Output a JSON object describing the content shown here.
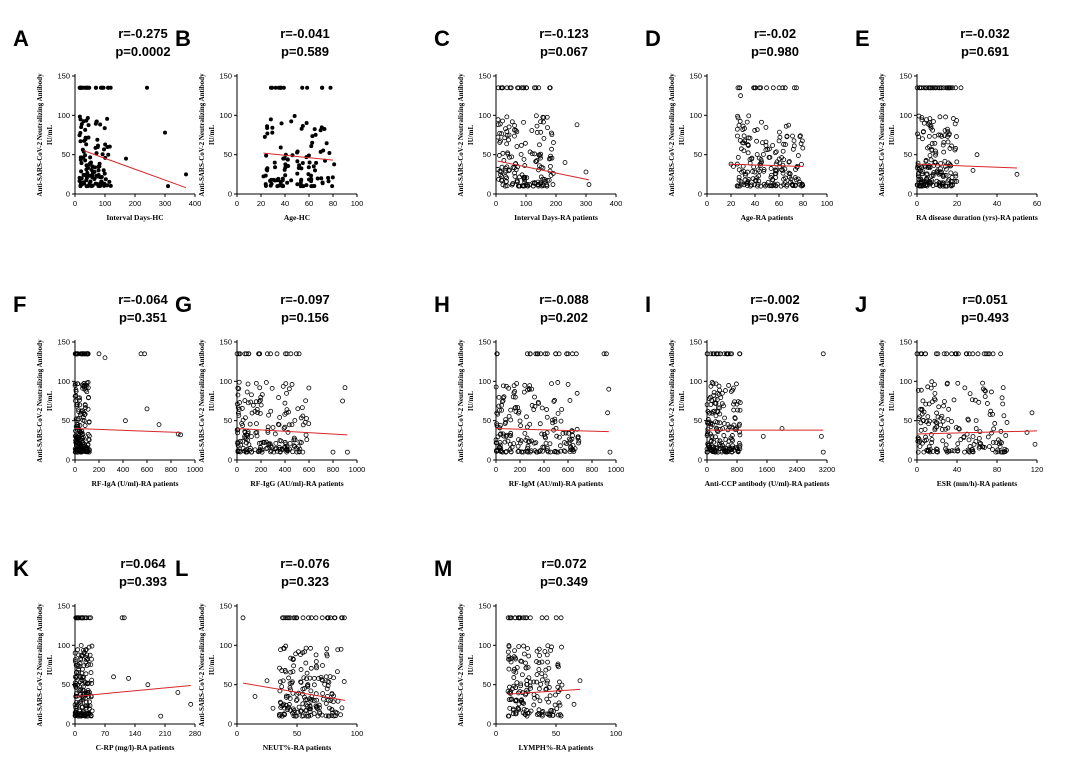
{
  "chart_data": [
    {
      "type": "scatter",
      "letter": "A",
      "r_text": "r=-0.275",
      "p_text": "p=0.0002",
      "xlabel": "Interval Days-HC",
      "ylabel_line1": "Anti-SARS-CoV-2 Neutralizing Antibody",
      "ylabel_line2": "IU/mL",
      "xlim": [
        0,
        400
      ],
      "ylim": [
        0,
        150
      ],
      "xticks": [
        0,
        100,
        200,
        300,
        400
      ],
      "yticks": [
        0,
        50,
        100,
        150
      ],
      "marker": "filled",
      "trend": [
        [
          30,
          55
        ],
        [
          370,
          8
        ]
      ],
      "cluster": {
        "x": [
          15,
          120
        ],
        "y": [
          10,
          135
        ]
      },
      "extra_points": [
        [
          240,
          135
        ],
        [
          300,
          78
        ],
        [
          310,
          10
        ],
        [
          370,
          25
        ],
        [
          170,
          45
        ]
      ],
      "n": 130,
      "seed": 11
    },
    {
      "type": "scatter",
      "letter": "B",
      "r_text": "r=-0.041",
      "p_text": "p=0.589",
      "xlabel": "Age-HC",
      "ylabel_line1": "Anti-SARS-CoV-2 Neutralizing Antibody",
      "ylabel_line2": "IU/mL",
      "xlim": [
        0,
        100
      ],
      "ylim": [
        0,
        150
      ],
      "xticks": [
        0,
        20,
        40,
        60,
        80,
        100
      ],
      "yticks": [
        0,
        50,
        100,
        150
      ],
      "marker": "filled",
      "trend": [
        [
          22,
          52
        ],
        [
          80,
          43
        ]
      ],
      "cluster": {
        "x": [
          22,
          82
        ],
        "y": [
          10,
          135
        ]
      },
      "extra_points": [],
      "n": 120,
      "seed": 23
    },
    {
      "type": "scatter",
      "letter": "C",
      "r_text": "r=-0.123",
      "p_text": "p=0.067",
      "xlabel": "Interval Days-RA patients",
      "ylabel_line1": "Anti-SARS-CoV-2 Neutralizing Antibody",
      "ylabel_line2": "IU/mL",
      "xlim": [
        0,
        400
      ],
      "ylim": [
        0,
        150
      ],
      "xticks": [
        0,
        100,
        200,
        300,
        400
      ],
      "yticks": [
        0,
        50,
        100,
        150
      ],
      "marker": "open",
      "trend": [
        [
          5,
          42
        ],
        [
          310,
          18
        ]
      ],
      "cluster": {
        "x": [
          5,
          200
        ],
        "y": [
          10,
          135
        ]
      },
      "extra_points": [
        [
          270,
          88
        ],
        [
          300,
          28
        ],
        [
          310,
          12
        ],
        [
          230,
          40
        ]
      ],
      "n": 180,
      "seed": 37
    },
    {
      "type": "scatter",
      "letter": "D",
      "r_text": "r=-0.02",
      "p_text": "p=0.980",
      "xlabel": "Age-RA patients",
      "ylabel_line1": "Anti-SARS-CoV-2 Neutralizing Antibody",
      "ylabel_line2": "IU/mL",
      "xlim": [
        0,
        100
      ],
      "ylim": [
        0,
        150
      ],
      "xticks": [
        0,
        20,
        40,
        60,
        80,
        100
      ],
      "yticks": [
        0,
        50,
        100,
        150
      ],
      "marker": "open",
      "trend": [
        [
          18,
          38
        ],
        [
          80,
          35
        ]
      ],
      "cluster": {
        "x": [
          25,
          80
        ],
        "y": [
          10,
          135
        ]
      },
      "extra_points": [
        [
          20,
          38
        ],
        [
          28,
          125
        ],
        [
          22,
          35
        ]
      ],
      "n": 200,
      "seed": 41
    },
    {
      "type": "scatter",
      "letter": "E",
      "r_text": "r=-0.032",
      "p_text": "p=0.691",
      "xlabel": "RA disease duration (yrs)-RA patients",
      "ylabel_line1": "Anti-SARS-CoV-2 Neutralizing Antibody",
      "ylabel_line2": "IU/mL",
      "xlim": [
        0,
        60
      ],
      "ylim": [
        0,
        150
      ],
      "xticks": [
        0,
        20,
        40,
        60
      ],
      "yticks": [
        0,
        50,
        100,
        150
      ],
      "marker": "open",
      "trend": [
        [
          0,
          38
        ],
        [
          50,
          33
        ]
      ],
      "cluster": {
        "x": [
          0,
          20
        ],
        "y": [
          10,
          135
        ]
      },
      "extra_points": [
        [
          30,
          50
        ],
        [
          50,
          25
        ],
        [
          22,
          135
        ],
        [
          28,
          30
        ]
      ],
      "n": 200,
      "seed": 53
    },
    {
      "type": "scatter",
      "letter": "F",
      "r_text": "r=-0.064",
      "p_text": "p=0.351",
      "xlabel": "RF-IgA (U/ml)-RA patients",
      "ylabel_line1": "Anti-SARS-CoV-2 Neutralizing Antibody",
      "ylabel_line2": "IU/mL",
      "xlim": [
        0,
        1000
      ],
      "ylim": [
        0,
        150
      ],
      "xticks": [
        0,
        200,
        400,
        600,
        800,
        1000
      ],
      "yticks": [
        0,
        50,
        100,
        150
      ],
      "marker": "open",
      "trend": [
        [
          0,
          40
        ],
        [
          880,
          35
        ]
      ],
      "cluster": {
        "x": [
          0,
          120
        ],
        "y": [
          10,
          135
        ]
      },
      "extra_points": [
        [
          550,
          135
        ],
        [
          580,
          135
        ],
        [
          200,
          135
        ],
        [
          250,
          130
        ],
        [
          700,
          45
        ],
        [
          860,
          33
        ],
        [
          880,
          32
        ],
        [
          600,
          65
        ],
        [
          420,
          50
        ]
      ],
      "n": 190,
      "seed": 61
    },
    {
      "type": "scatter",
      "letter": "G",
      "r_text": "r=-0.097",
      "p_text": "p=0.156",
      "xlabel": "RF-IgG (AU/ml)-RA patients",
      "ylabel_line1": "Anti-SARS-CoV-2 Neutralizing Antibody",
      "ylabel_line2": "IU/mL",
      "xlim": [
        0,
        1000
      ],
      "ylim": [
        0,
        150
      ],
      "xticks": [
        0,
        200,
        400,
        600,
        800,
        1000
      ],
      "yticks": [
        0,
        50,
        100,
        150
      ],
      "marker": "open",
      "trend": [
        [
          0,
          40
        ],
        [
          920,
          32
        ]
      ],
      "cluster": {
        "x": [
          0,
          600
        ],
        "y": [
          10,
          135
        ]
      },
      "extra_points": [
        [
          900,
          92
        ],
        [
          880,
          75
        ],
        [
          920,
          10
        ],
        [
          800,
          10
        ]
      ],
      "n": 200,
      "seed": 71
    },
    {
      "type": "scatter",
      "letter": "H",
      "r_text": "r=-0.088",
      "p_text": "p=0.202",
      "xlabel": "RF-IgM (AU/ml)-RA patients",
      "ylabel_line1": "Anti-SARS-CoV-2 Neutralizing Antibody",
      "ylabel_line2": "IU/mL",
      "xlim": [
        0,
        1000
      ],
      "ylim": [
        0,
        150
      ],
      "xticks": [
        0,
        200,
        400,
        600,
        800,
        1000
      ],
      "yticks": [
        0,
        50,
        100,
        150
      ],
      "marker": "open",
      "trend": [
        [
          0,
          40
        ],
        [
          940,
          36
        ]
      ],
      "cluster": {
        "x": [
          0,
          700
        ],
        "y": [
          10,
          135
        ]
      },
      "extra_points": [
        [
          900,
          135
        ],
        [
          920,
          135
        ],
        [
          940,
          90
        ],
        [
          930,
          60
        ],
        [
          950,
          10
        ]
      ],
      "n": 210,
      "seed": 83
    },
    {
      "type": "scatter",
      "letter": "I",
      "r_text": "r=-0.002",
      "p_text": "p=0.976",
      "xlabel": "Anti-CCP antibody (U/ml)-RA patients",
      "ylabel_line1": "Anti-SARS-CoV-2 Neutralizing Antibody",
      "ylabel_line2": "IU/mL",
      "xlim": [
        0,
        3200
      ],
      "ylim": [
        0,
        150
      ],
      "xticks": [
        0,
        800,
        1600,
        2400,
        3200
      ],
      "yticks": [
        0,
        50,
        100,
        150
      ],
      "marker": "open",
      "trend": [
        [
          0,
          38
        ],
        [
          3100,
          38
        ]
      ],
      "cluster": {
        "x": [
          0,
          900
        ],
        "y": [
          10,
          135
        ]
      },
      "extra_points": [
        [
          3100,
          135
        ],
        [
          3050,
          30
        ],
        [
          3100,
          10
        ],
        [
          2000,
          40
        ],
        [
          1500,
          30
        ]
      ],
      "n": 190,
      "seed": 97
    },
    {
      "type": "scatter",
      "letter": "J",
      "r_text": "r=0.051",
      "p_text": "p=0.493",
      "xlabel": "ESR (mm/h)-RA patients",
      "ylabel_line1": "Anti-SARS-CoV-2 Neutralizing Antibody",
      "ylabel_line2": "IU/mL",
      "xlim": [
        0,
        120
      ],
      "ylim": [
        0,
        150
      ],
      "xticks": [
        0,
        40,
        80,
        120
      ],
      "yticks": [
        0,
        50,
        100,
        150
      ],
      "marker": "open",
      "trend": [
        [
          0,
          33
        ],
        [
          120,
          37
        ]
      ],
      "cluster": {
        "x": [
          0,
          90
        ],
        "y": [
          10,
          135
        ]
      },
      "extra_points": [
        [
          115,
          60
        ],
        [
          110,
          35
        ],
        [
          118,
          20
        ]
      ],
      "n": 200,
      "seed": 103
    },
    {
      "type": "scatter",
      "letter": "K",
      "r_text": "r=0.064",
      "p_text": "p=0.393",
      "xlabel": "C-RP (mg/l)-RA patients",
      "ylabel_line1": "Anti-SARS-CoV-2 Neutralizing Antibody",
      "ylabel_line2": "IU/mL",
      "xlim": [
        0,
        280
      ],
      "ylim": [
        0,
        150
      ],
      "xticks": [
        0,
        70,
        140,
        210,
        280
      ],
      "yticks": [
        0,
        50,
        100,
        150
      ],
      "marker": "open",
      "trend": [
        [
          0,
          35
        ],
        [
          270,
          49
        ]
      ],
      "cluster": {
        "x": [
          0,
          40
        ],
        "y": [
          10,
          135
        ]
      },
      "extra_points": [
        [
          110,
          135
        ],
        [
          115,
          135
        ],
        [
          170,
          50
        ],
        [
          240,
          40
        ],
        [
          270,
          25
        ],
        [
          200,
          10
        ],
        [
          125,
          58
        ],
        [
          90,
          60
        ]
      ],
      "n": 180,
      "seed": 109
    },
    {
      "type": "scatter",
      "letter": "L",
      "r_text": "r=-0.076",
      "p_text": "p=0.323",
      "xlabel": "NEUT%-RA patients",
      "ylabel_line1": "Anti-SARS-CoV-2 Neutralizing Antibody",
      "ylabel_line2": "IU/mL",
      "xlim": [
        0,
        100
      ],
      "ylim": [
        0,
        150
      ],
      "xticks": [
        0,
        50,
        100
      ],
      "yticks": [
        0,
        50,
        100,
        150
      ],
      "marker": "open",
      "trend": [
        [
          5,
          52
        ],
        [
          90,
          30
        ]
      ],
      "cluster": {
        "x": [
          35,
          90
        ],
        "y": [
          10,
          135
        ]
      },
      "extra_points": [
        [
          5,
          135
        ],
        [
          15,
          35
        ],
        [
          25,
          55
        ],
        [
          30,
          20
        ]
      ],
      "n": 200,
      "seed": 127
    },
    {
      "type": "scatter",
      "letter": "M",
      "r_text": "r=0.072",
      "p_text": "p=0.349",
      "xlabel": "LYMPH%-RA patients",
      "ylabel_line1": "Anti-SARS-CoV-2 Neutralizing Antibody",
      "ylabel_line2": "IU/mL",
      "xlim": [
        0,
        100
      ],
      "ylim": [
        0,
        150
      ],
      "xticks": [
        0,
        50,
        100
      ],
      "yticks": [
        0,
        50,
        100,
        150
      ],
      "marker": "open",
      "trend": [
        [
          10,
          38
        ],
        [
          70,
          44
        ]
      ],
      "cluster": {
        "x": [
          10,
          55
        ],
        "y": [
          10,
          135
        ]
      },
      "extra_points": [
        [
          70,
          55
        ],
        [
          65,
          25
        ],
        [
          60,
          35
        ]
      ],
      "n": 180,
      "seed": 131
    }
  ]
}
